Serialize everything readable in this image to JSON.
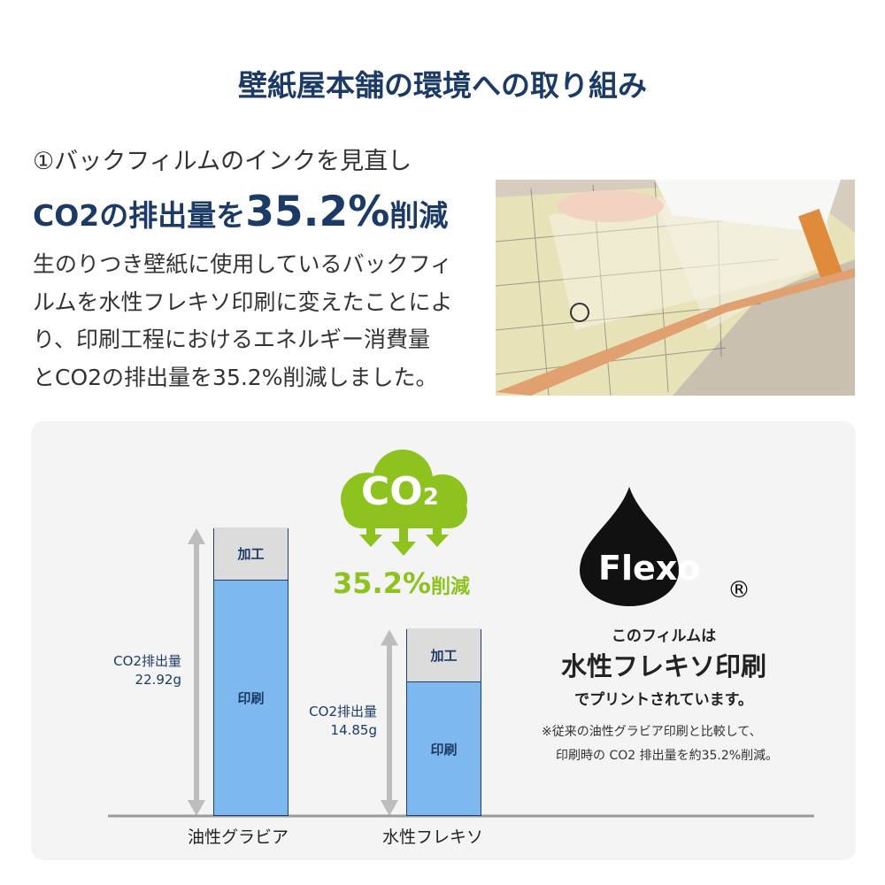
{
  "title": "壁紙屋本舗の環境への取り組み",
  "section": {
    "number": "①",
    "heading": "バックフィルムのインクを見直し",
    "headline_pre": "CO2の排出量を",
    "headline_value": "35.2%",
    "headline_post": "削減",
    "body": [
      "生のりつき壁紙に使用しているバックフィ",
      "ルムを水性フレキソ印刷に変えたことによ",
      "り、印刷工程におけるエネルギー消費量",
      "とCO2の排出量を35.2%削減しました。"
    ]
  },
  "cloud": {
    "text": "CO",
    "subscript": "2",
    "reduction": "35.2%",
    "reduction_suffix": "削減",
    "color": "#8dc21f"
  },
  "flexo": {
    "logo_text": "Flexo",
    "registered": "®",
    "line1": "このフィルムは",
    "line2": "水性フレキソ印刷",
    "line3": "でプリントされています。",
    "note1": "※従来の油性グラビア印刷と比較して、",
    "note2": "印刷時の CO2 排出量を約35.2%削減。"
  },
  "chart_data": {
    "type": "bar",
    "stacked": true,
    "categories": [
      "油性グラビア",
      "水性フレキソ"
    ],
    "series": [
      {
        "name": "印刷",
        "values": [
          18.69,
          10.55
        ],
        "color": "#7db9ef"
      },
      {
        "name": "加工",
        "values": [
          4.23,
          4.3
        ],
        "color": "#dcdcdc"
      }
    ],
    "totals": [
      22.92,
      14.85
    ],
    "total_labels": [
      {
        "label": "CO2排出量",
        "value": "22.92g"
      },
      {
        "label": "CO2排出量",
        "value": "14.85g"
      }
    ],
    "ylim": [
      0,
      22.92
    ]
  }
}
